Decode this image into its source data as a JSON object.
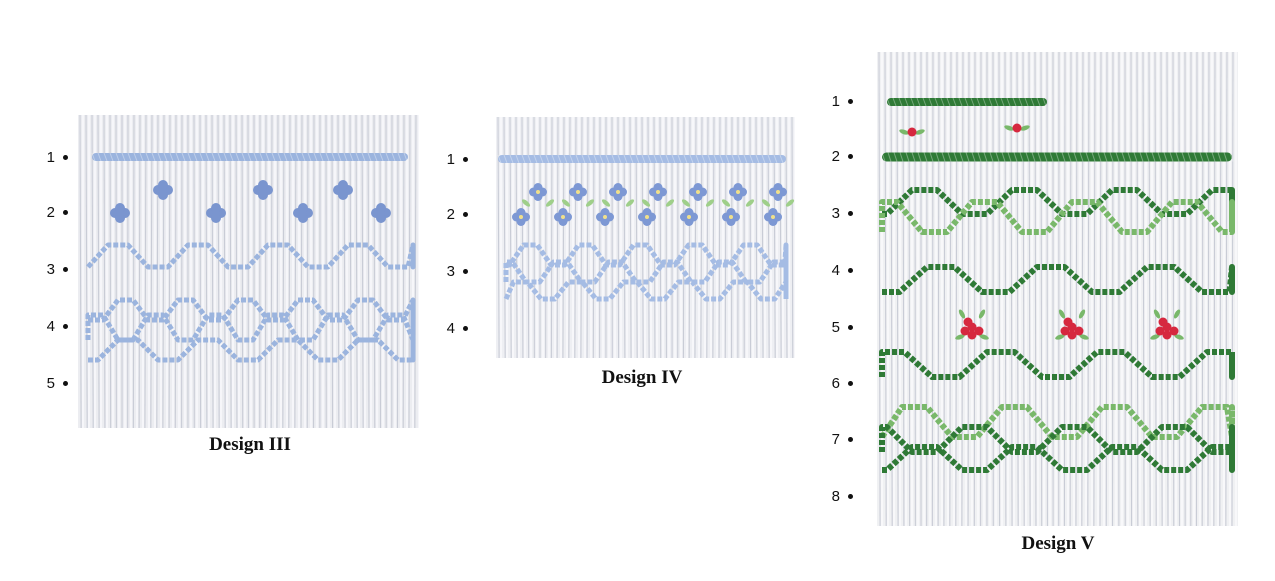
{
  "designs": [
    {
      "caption": "Design III",
      "rows": [
        "1",
        "2",
        "3",
        "4",
        "5"
      ],
      "thread_colors": {
        "primary": "#9bb4de",
        "flower": "#7a95cf"
      },
      "fabric_color": "#ecedf1"
    },
    {
      "caption": "Design IV",
      "rows": [
        "1",
        "2",
        "3",
        "4"
      ],
      "thread_colors": {
        "primary": "#a5bce4",
        "flower": "#7d98d4",
        "leaf": "#9fcf8a",
        "center": "#f0e08a"
      },
      "fabric_color": "#eeeff3"
    },
    {
      "caption": "Design V",
      "rows": [
        "1",
        "2",
        "3",
        "4",
        "5",
        "6",
        "7",
        "8"
      ],
      "thread_colors": {
        "dark": "#2f7a36",
        "light": "#79b86a",
        "berry": "#d6283f"
      },
      "fabric_color": "#f0f1f3"
    }
  ]
}
